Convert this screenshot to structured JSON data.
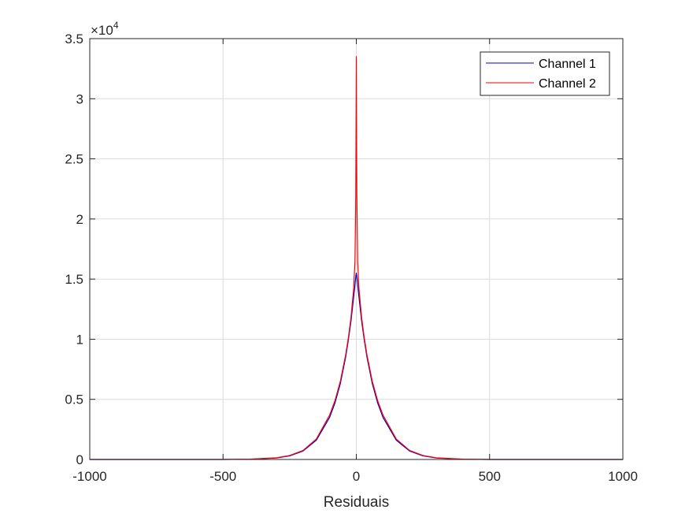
{
  "chart_data": {
    "type": "line",
    "title": "",
    "xlabel": "Residuais",
    "ylabel": "",
    "xlim": [
      -1000,
      1000
    ],
    "ylim": [
      0,
      35000
    ],
    "xticks": [
      -1000,
      -500,
      0,
      500,
      1000
    ],
    "xtick_labels": [
      "-1000",
      "-500",
      "0",
      "500",
      "1000"
    ],
    "yticks": [
      0,
      5000,
      10000,
      15000,
      20000,
      25000,
      30000,
      35000
    ],
    "ytick_labels": [
      "0",
      "0.5",
      "1",
      "1.5",
      "2",
      "2.5",
      "3",
      "3.5"
    ],
    "y_exponent_label": {
      "base": "×10",
      "power": "4"
    },
    "grid": true,
    "legend_position": "top-right",
    "series": [
      {
        "name": "Channel 1",
        "color": "#0000cc",
        "x": [
          -1000,
          -500,
          -400,
          -300,
          -250,
          -200,
          -150,
          -100,
          -80,
          -60,
          -40,
          -30,
          -20,
          -10,
          -5,
          -2,
          0,
          2,
          5,
          10,
          20,
          30,
          40,
          60,
          80,
          100,
          150,
          200,
          250,
          300,
          400,
          500,
          1000
        ],
        "y": [
          0,
          0,
          20,
          120,
          300,
          700,
          1600,
          3500,
          4700,
          6300,
          8500,
          9900,
          11500,
          13500,
          14500,
          15200,
          15500,
          15200,
          14500,
          13500,
          11500,
          9900,
          8500,
          6300,
          4700,
          3500,
          1600,
          700,
          300,
          120,
          20,
          0,
          0
        ]
      },
      {
        "name": "Channel 2",
        "color": "#ff0000",
        "x": [
          -1000,
          -500,
          -400,
          -300,
          -250,
          -200,
          -150,
          -100,
          -80,
          -60,
          -40,
          -30,
          -20,
          -10,
          -5,
          -2,
          0,
          2,
          5,
          10,
          20,
          30,
          40,
          60,
          80,
          100,
          150,
          200,
          250,
          300,
          400,
          500,
          1000
        ],
        "y": [
          0,
          0,
          25,
          140,
          330,
          750,
          1700,
          3700,
          4900,
          6500,
          8700,
          10100,
          11800,
          14200,
          16500,
          22000,
          33500,
          22000,
          16500,
          14200,
          11800,
          10100,
          8700,
          6500,
          4900,
          3700,
          1700,
          750,
          330,
          140,
          25,
          0,
          0
        ]
      }
    ]
  }
}
